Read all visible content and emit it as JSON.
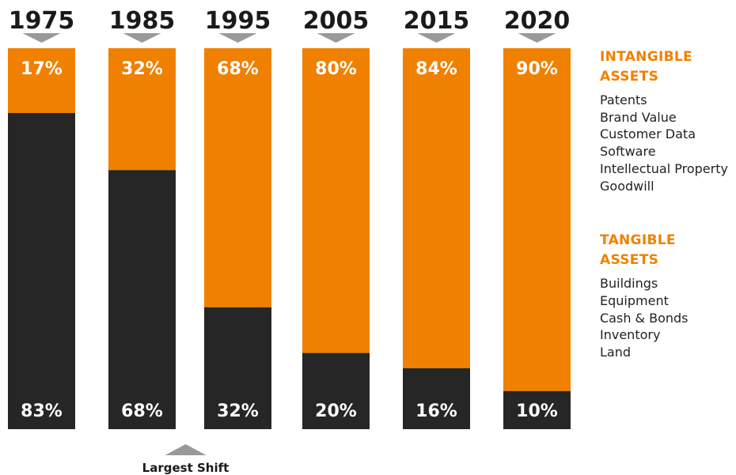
{
  "chart_data": {
    "type": "bar",
    "stacked": true,
    "categories": [
      "1975",
      "1985",
      "1995",
      "2005",
      "2015",
      "2020"
    ],
    "series": [
      {
        "name": "INTANGIBLE ASSETS",
        "values": [
          17,
          32,
          68,
          80,
          84,
          90
        ],
        "labels": [
          "17%",
          "32%",
          "68%",
          "80%",
          "84%",
          "90%"
        ],
        "color": "#f08000"
      },
      {
        "name": "TANGIBLE ASSETS",
        "values": [
          83,
          68,
          32,
          20,
          16,
          10
        ],
        "labels": [
          "83%",
          "68%",
          "32%",
          "20%",
          "16%",
          "10%"
        ],
        "color": "#262626"
      }
    ],
    "ylim": [
      0,
      100
    ],
    "annotation": {
      "text": "Largest Shift",
      "category": "1985"
    },
    "legend_position": "right"
  },
  "legend": {
    "intangible": {
      "title": "INTANGIBLE\nASSETS",
      "color": "#f08000",
      "items": [
        "Patents",
        "Brand Value",
        "Customer Data",
        "Software",
        "Intellectual Property",
        "Goodwill"
      ]
    },
    "tangible": {
      "title": "TANGIBLE\nASSETS",
      "color": "#f08000",
      "items": [
        "Buildings",
        "Equipment",
        "Cash & Bonds",
        "Inventory",
        "Land"
      ]
    }
  },
  "colors": {
    "marker": "#999999",
    "text": "#1a1a1a"
  }
}
